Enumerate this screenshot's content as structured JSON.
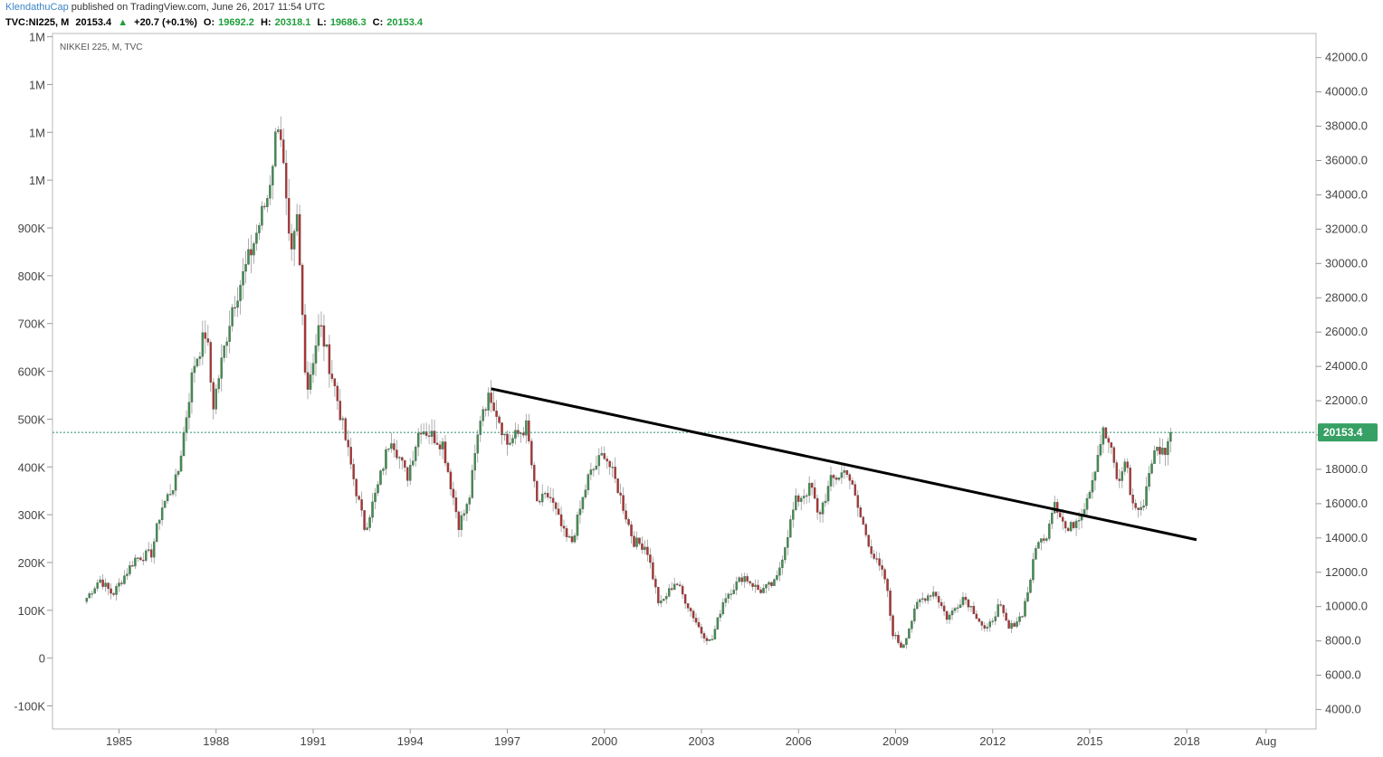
{
  "header": {
    "author": "KlendathuCap",
    "published": "published on TradingView.com, June 26, 2017 11:54 UTC"
  },
  "quote": {
    "symbol": "TVC:NI225, M",
    "last": "20153.4",
    "change": "+20.7 (+0.1%)",
    "open_label": "O:",
    "open": "19692.2",
    "high_label": "H:",
    "high": "20318.1",
    "low_label": "L:",
    "low": "19686.3",
    "close_label": "C:",
    "close": "20153.4"
  },
  "colors": {
    "up": "#3f8f4f",
    "down": "#b03232",
    "trendline": "#000000",
    "price_line": "#2e8b6f",
    "last_badge": "#37a064",
    "axis_text": "#444444"
  },
  "chart_data": {
    "type": "candlestick",
    "title": "NIKKEI 225, M, TVC",
    "last_price_label": "20153.4",
    "y_right": {
      "ticks": [
        "4000.0",
        "6000.0",
        "8000.0",
        "10000.0",
        "12000.0",
        "14000.0",
        "16000.0",
        "18000.0",
        "20000.0",
        "22000.0",
        "24000.0",
        "26000.0",
        "28000.0",
        "30000.0",
        "32000.0",
        "34000.0",
        "36000.0",
        "38000.0",
        "40000.0",
        "42000.0"
      ],
      "range": [
        3000,
        43000
      ]
    },
    "y_left": {
      "ticks": [
        "-100K",
        "0",
        "100K",
        "200K",
        "300K",
        "400K",
        "500K",
        "600K",
        "700K",
        "800K",
        "900K",
        "1M",
        "1M",
        "1M",
        "1M"
      ]
    },
    "x_ticks": [
      "1985",
      "1988",
      "1991",
      "1994",
      "1997",
      "2000",
      "2003",
      "2006",
      "2009",
      "2012",
      "2015",
      "2018",
      "Aug"
    ],
    "x_range": [
      1984.0,
      2017.5
    ],
    "trendline": {
      "x1": 1996.5,
      "y1": 22700,
      "x2": 2018.3,
      "y2": 13900
    },
    "anchors": [
      [
        1984.0,
        10500
      ],
      [
        1984.4,
        11600
      ],
      [
        1984.8,
        10700
      ],
      [
        1985.5,
        12800
      ],
      [
        1986.0,
        13100
      ],
      [
        1986.3,
        15700
      ],
      [
        1986.8,
        17500
      ],
      [
        1987.3,
        24000
      ],
      [
        1987.7,
        26100
      ],
      [
        1987.9,
        21600
      ],
      [
        1988.5,
        27500
      ],
      [
        1989.0,
        30200
      ],
      [
        1989.6,
        34000
      ],
      [
        1989.95,
        38900
      ],
      [
        1990.3,
        29800
      ],
      [
        1990.5,
        32500
      ],
      [
        1990.8,
        22500
      ],
      [
        1991.2,
        26500
      ],
      [
        1991.7,
        22500
      ],
      [
        1992.3,
        17000
      ],
      [
        1992.6,
        14500
      ],
      [
        1993.0,
        17000
      ],
      [
        1993.4,
        20000
      ],
      [
        1993.9,
        17500
      ],
      [
        1994.3,
        20500
      ],
      [
        1995.0,
        19500
      ],
      [
        1995.5,
        14800
      ],
      [
        1995.8,
        16000
      ],
      [
        1996.2,
        21500
      ],
      [
        1996.5,
        22300
      ],
      [
        1997.0,
        19500
      ],
      [
        1997.6,
        20500
      ],
      [
        1997.9,
        16000
      ],
      [
        1998.3,
        16500
      ],
      [
        1998.8,
        14000
      ],
      [
        1999.0,
        13800
      ],
      [
        1999.5,
        17500
      ],
      [
        2000.0,
        19000
      ],
      [
        2000.4,
        17000
      ],
      [
        2000.9,
        13800
      ],
      [
        2001.3,
        13500
      ],
      [
        2001.7,
        10000
      ],
      [
        2002.2,
        11500
      ],
      [
        2002.6,
        10000
      ],
      [
        2003.0,
        8500
      ],
      [
        2003.3,
        7900
      ],
      [
        2003.7,
        10500
      ],
      [
        2004.3,
        11800
      ],
      [
        2004.8,
        10900
      ],
      [
        2005.3,
        11400
      ],
      [
        2005.9,
        16100
      ],
      [
        2006.4,
        17000
      ],
      [
        2006.6,
        15200
      ],
      [
        2007.0,
        17300
      ],
      [
        2007.5,
        18000
      ],
      [
        2007.9,
        15300
      ],
      [
        2008.3,
        13000
      ],
      [
        2008.7,
        11500
      ],
      [
        2008.9,
        8500
      ],
      [
        2009.2,
        7600
      ],
      [
        2009.7,
        10300
      ],
      [
        2010.2,
        10900
      ],
      [
        2010.6,
        9300
      ],
      [
        2011.1,
        10600
      ],
      [
        2011.4,
        9800
      ],
      [
        2011.8,
        8500
      ],
      [
        2012.2,
        10100
      ],
      [
        2012.5,
        8700
      ],
      [
        2012.9,
        9500
      ],
      [
        2013.1,
        11000
      ],
      [
        2013.4,
        14000
      ],
      [
        2013.6,
        13700
      ],
      [
        2013.9,
        16300
      ],
      [
        2014.3,
        14300
      ],
      [
        2014.8,
        15700
      ],
      [
        2015.1,
        17600
      ],
      [
        2015.4,
        20200
      ],
      [
        2015.6,
        19500
      ],
      [
        2015.9,
        17000
      ],
      [
        2016.1,
        18800
      ],
      [
        2016.3,
        16000
      ],
      [
        2016.6,
        15500
      ],
      [
        2016.9,
        18500
      ],
      [
        2017.1,
        19200
      ],
      [
        2017.3,
        19000
      ],
      [
        2017.5,
        20150
      ]
    ]
  }
}
